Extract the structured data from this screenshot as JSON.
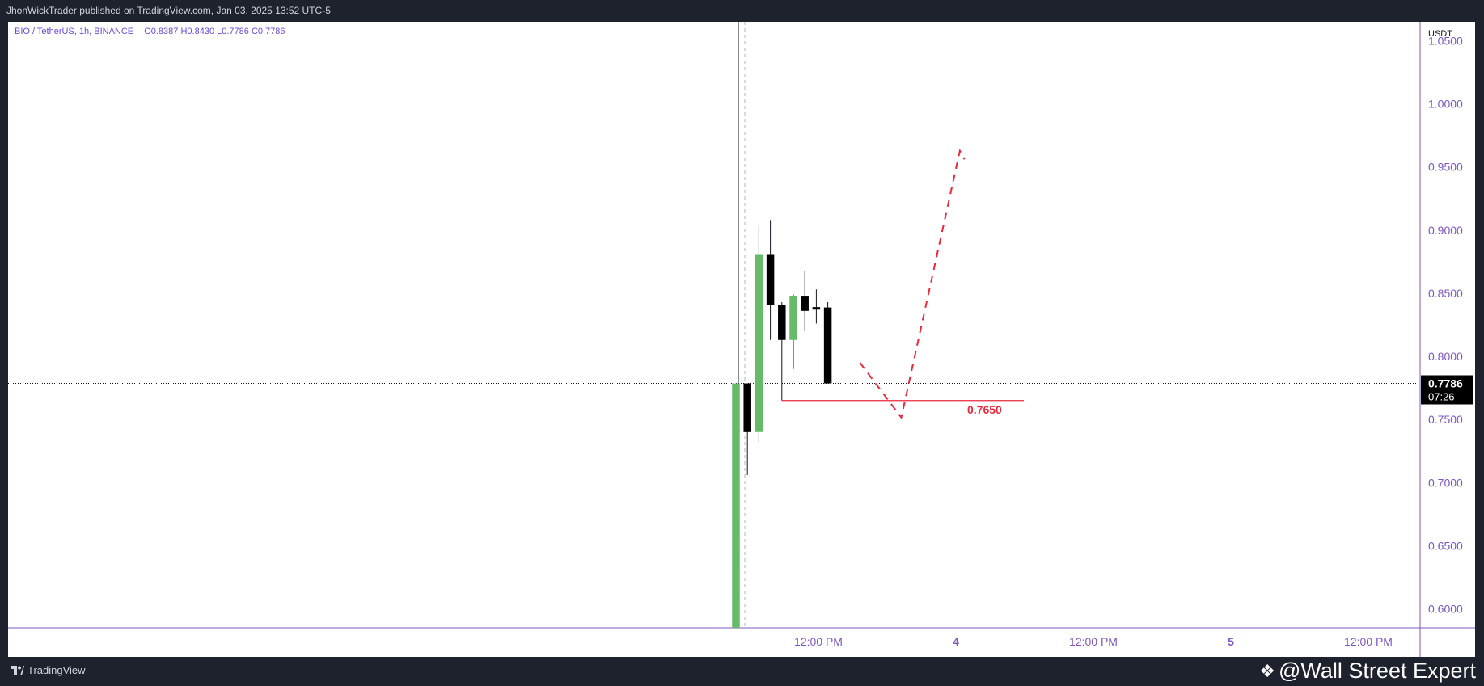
{
  "header": {
    "published": "JhonWickTrader published on TradingView.com, Jan 03, 2025 13:52 UTC-5"
  },
  "legend": {
    "symbol": "BIO / TetherUS, 1h, BINANCE",
    "open": "O0.8387",
    "high": "H0.8430",
    "low": "L0.7786",
    "close": "C0.7786"
  },
  "price_axis": {
    "currency": "USDT",
    "current_price": "0.7786",
    "countdown": "07:26"
  },
  "annotation": {
    "level_label": "0.7650"
  },
  "footer": {
    "brand": "TradingView",
    "watermark": "@Wall Street Expert"
  },
  "colors": {
    "bull": "#66bb6a",
    "bear": "#000000",
    "axis": "#7e57c2",
    "annotation": "#e8293b"
  },
  "chart_data": {
    "type": "candlestick",
    "symbol": "BIO / TetherUS",
    "interval": "1h",
    "exchange": "BINANCE",
    "ylim": [
      0.585,
      1.065
    ],
    "y_ticks": [
      "0.6000",
      "0.6500",
      "0.7000",
      "0.7500",
      "0.8000",
      "0.8500",
      "0.9000",
      "0.9500",
      "1.0000",
      "1.0500"
    ],
    "x_ticks": [
      "12:00 PM",
      "4",
      "12:00 PM",
      "5",
      "12:00 PM"
    ],
    "candles": [
      {
        "o": 0.585,
        "h": 0.7786,
        "l": 0.585,
        "c": 0.7786
      },
      {
        "o": 0.7786,
        "h": 0.7786,
        "l": 0.706,
        "c": 0.74
      },
      {
        "o": 0.74,
        "h": 0.904,
        "l": 0.732,
        "c": 0.881
      },
      {
        "o": 0.881,
        "h": 0.908,
        "l": 0.813,
        "c": 0.841
      },
      {
        "o": 0.841,
        "h": 0.843,
        "l": 0.765,
        "c": 0.813
      },
      {
        "o": 0.813,
        "h": 0.849,
        "l": 0.79,
        "c": 0.848
      },
      {
        "o": 0.848,
        "h": 0.868,
        "l": 0.82,
        "c": 0.836
      },
      {
        "o": 0.839,
        "h": 0.853,
        "l": 0.826,
        "c": 0.837
      },
      {
        "o": 0.8387,
        "h": 0.843,
        "l": 0.7786,
        "c": 0.7786
      }
    ],
    "current_price": 0.7786,
    "support_level": 0.765,
    "projection": [
      {
        "bar": 10.8,
        "price": 0.795
      },
      {
        "bar": 14.4,
        "price": 0.7516
      },
      {
        "bar": 19.5,
        "price": 0.9628
      },
      {
        "bar": 19.9,
        "price": 0.956
      }
    ]
  }
}
